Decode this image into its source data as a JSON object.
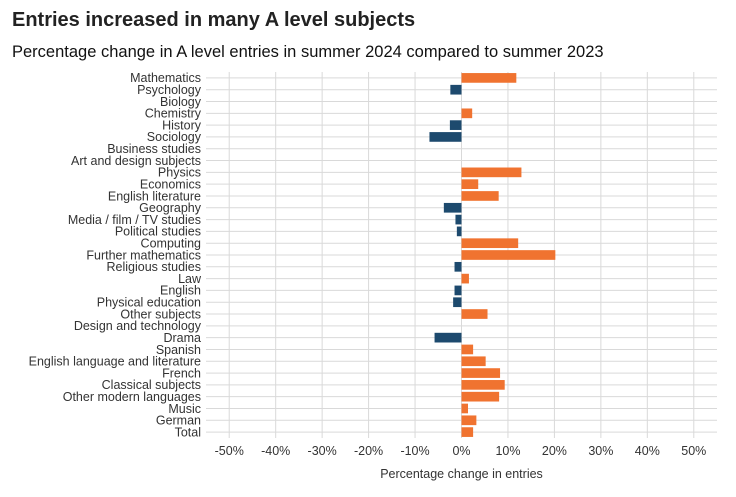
{
  "title": "Entries increased in many A level subjects",
  "subtitle": "Percentage change in A level entries in summer 2024 compared to summer 2023",
  "chart_data": {
    "type": "bar",
    "orientation": "horizontal",
    "title": "Entries increased in many A level subjects",
    "subtitle": "Percentage change in A level entries in summer 2024 compared to summer 2023",
    "xlabel": "Percentage change in entries",
    "ylabel": "",
    "xlim": [
      -55,
      55
    ],
    "xticks": [
      -50,
      -40,
      -30,
      -20,
      -10,
      0,
      10,
      20,
      30,
      40,
      50
    ],
    "xtick_labels": [
      "-50%",
      "-40%",
      "-30%",
      "-20%",
      "-10%",
      "0%",
      "10%",
      "20%",
      "30%",
      "40%",
      "50%"
    ],
    "grid": true,
    "categories": [
      "Mathematics",
      "Psychology",
      "Biology",
      "Chemistry",
      "History",
      "Sociology",
      "Business studies",
      "Art and design subjects",
      "Physics",
      "Economics",
      "English literature",
      "Geography",
      "Media / film / TV studies",
      "Political studies",
      "Computing",
      "Further mathematics",
      "Religious studies",
      "Law",
      "English",
      "Physical education",
      "Other subjects",
      "Design and technology",
      "Drama",
      "Spanish",
      "English language and literature",
      "French",
      "Classical subjects",
      "Other modern languages",
      "Music",
      "German",
      "Total"
    ],
    "values": [
      11.8,
      -2.4,
      0,
      2.3,
      -2.5,
      -6.9,
      0,
      0,
      12.9,
      3.6,
      8.0,
      -3.8,
      -1.3,
      -1.0,
      12.2,
      20.2,
      -1.5,
      1.6,
      -1.5,
      -1.8,
      5.6,
      0,
      -5.8,
      2.5,
      5.2,
      8.3,
      9.3,
      8.1,
      1.4,
      3.2,
      2.5
    ],
    "colors": {
      "increase": "#f07330",
      "decrease": "#1d4a6e",
      "grid": "#d9d9d9"
    }
  }
}
